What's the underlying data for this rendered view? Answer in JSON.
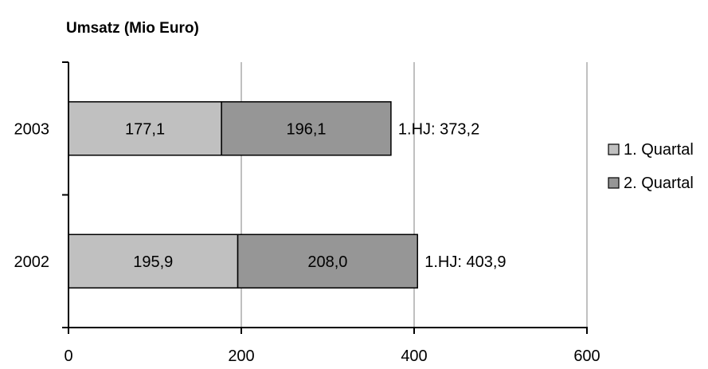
{
  "chart_data": {
    "type": "bar",
    "orientation": "horizontal",
    "stacked": true,
    "title": "Umsatz (Mio Euro)",
    "categories": [
      "2002",
      "2003"
    ],
    "series": [
      {
        "name": "1. Quartal",
        "values": [
          195.9,
          177.1
        ],
        "labels": [
          "195,9",
          "177,1"
        ],
        "color": "#c0c0c0"
      },
      {
        "name": "2. Quartal",
        "values": [
          208.0,
          196.1
        ],
        "labels": [
          "208,0",
          "196,1"
        ],
        "color": "#969696"
      }
    ],
    "totals": [
      "1.HJ: 403,9",
      "1.HJ: 373,2"
    ],
    "xlim": [
      0,
      600
    ],
    "xticks": [
      "0",
      "200",
      "400",
      "600"
    ],
    "grid": true,
    "legend_position": "right"
  }
}
